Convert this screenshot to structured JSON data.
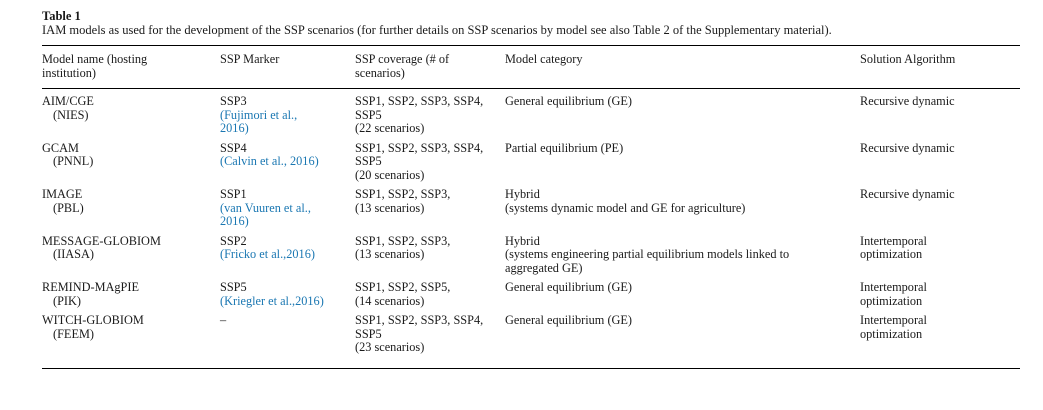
{
  "doc": {
    "table_label": "Table 1",
    "caption": "IAM models as used for the development of the SSP scenarios (for further details on SSP scenarios by model see also Table 2 of the Supplementary material)."
  },
  "colors": {
    "link_blue": "#1a77b2",
    "text": "#1a1a1a",
    "rule": "#000000"
  },
  "table": {
    "headers": [
      "Model name (hosting\ninstitution)",
      "SSP Marker",
      "SSP coverage (# of\nscenarios)",
      "Model category",
      "Solution Algorithm"
    ],
    "rows": [
      {
        "model": "AIM/CGE",
        "institution": "(NIES)",
        "marker_ssp": "SSP3",
        "citation": "(Fujimori et al.,\n2016)",
        "coverage": "SSP1, SSP2, SSP3, SSP4,\nSSP5\n(22 scenarios)",
        "category": "General equilibrium (GE)",
        "solution": "Recursive dynamic"
      },
      {
        "model": "GCAM",
        "institution": "(PNNL)",
        "marker_ssp": "SSP4",
        "citation": "(Calvin et al., 2016)",
        "coverage": "SSP1, SSP2, SSP3, SSP4,\nSSP5\n(20 scenarios)",
        "category": "Partial equilibrium (PE)",
        "solution": "Recursive dynamic"
      },
      {
        "model": "IMAGE",
        "institution": "(PBL)",
        "marker_ssp": "SSP1",
        "citation": "(van Vuuren et al.,\n2016)",
        "coverage": "SSP1, SSP2, SSP3,\n(13 scenarios)",
        "category": "Hybrid\n(systems dynamic model and GE for agriculture)",
        "solution": "Recursive dynamic"
      },
      {
        "model": "MESSAGE-GLOBIOM",
        "institution": "(IIASA)",
        "marker_ssp": "SSP2",
        "citation": "(Fricko et al.,2016)",
        "coverage": "SSP1, SSP2, SSP3,\n(13 scenarios)",
        "category": "Hybrid\n(systems engineering partial equilibrium models linked to\naggregated GE)",
        "solution": "Intertemporal\noptimization"
      },
      {
        "model": "REMIND-MAgPIE",
        "institution": "(PIK)",
        "marker_ssp": "SSP5",
        "citation": "(Kriegler et al.,2016)",
        "coverage": "SSP1, SSP2, SSP5,\n(14 scenarios)",
        "category": "General equilibrium (GE)",
        "solution": "Intertemporal\noptimization"
      },
      {
        "model": "WITCH-GLOBIOM",
        "institution": "(FEEM)",
        "marker_ssp": "–",
        "citation": "",
        "coverage": "SSP1, SSP2, SSP3, SSP4,\nSSP5\n(23 scenarios)",
        "category": "General equilibrium (GE)",
        "solution": "Intertemporal\noptimization"
      }
    ]
  }
}
